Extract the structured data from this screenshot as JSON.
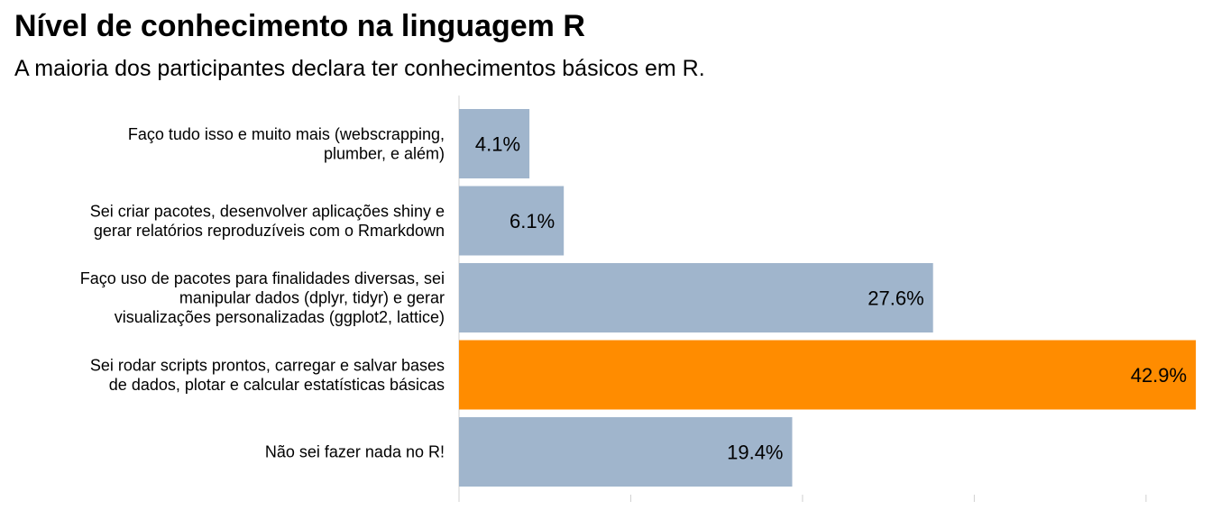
{
  "chart_data": {
    "type": "bar",
    "orientation": "horizontal",
    "title": "Nível de conhecimento na linguagem R",
    "subtitle": "A maioria dos participantes declara ter conhecimentos básicos em R.",
    "categories": [
      [
        "Faço tudo isso e muito mais (webscrapping,",
        "plumber, e além)"
      ],
      [
        "Sei criar pacotes, desenvolver aplicações shiny e",
        "gerar relatórios reproduzíveis com o Rmarkdown"
      ],
      [
        "Faço uso de pacotes para finalidades diversas, sei",
        "manipular dados (dplyr, tidyr) e gerar",
        "visualizações personalizadas (ggplot2, lattice)"
      ],
      [
        "Sei rodar scripts prontos, carregar e salvar bases",
        "de dados, plotar e calcular estatísticas básicas"
      ],
      [
        "Não sei fazer nada no R!"
      ]
    ],
    "values": [
      4.1,
      6.1,
      27.6,
      42.9,
      19.4
    ],
    "value_labels": [
      "4.1%",
      "6.1%",
      "27.6%",
      "42.9%",
      "19.4%"
    ],
    "colors": [
      "#a0b5cc",
      "#a0b5cc",
      "#a0b5cc",
      "#ff8c00",
      "#a0b5cc"
    ],
    "highlight_color": "#ff8c00",
    "base_color": "#a0b5cc",
    "xlim": [
      0,
      43
    ],
    "x_ticks": [
      0,
      10,
      20,
      30,
      40
    ],
    "xlabel": "",
    "ylabel": "",
    "grid": false,
    "legend": "none"
  }
}
